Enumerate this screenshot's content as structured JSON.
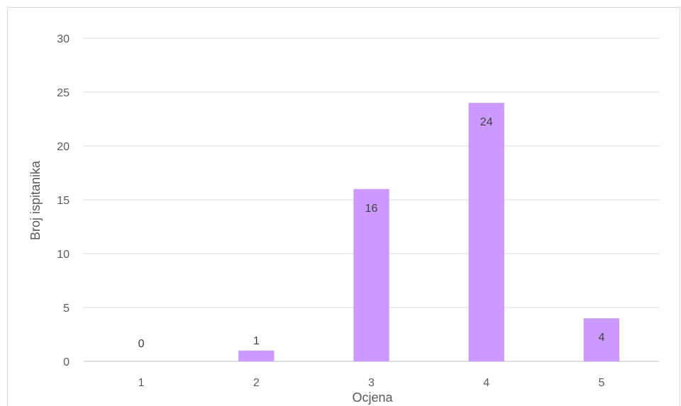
{
  "chart_data": {
    "type": "bar",
    "categories": [
      "1",
      "2",
      "3",
      "4",
      "5"
    ],
    "values": [
      0,
      1,
      16,
      24,
      4
    ],
    "data_labels": [
      "0",
      "1",
      "16",
      "24",
      "4"
    ],
    "xlabel": "Ocjena",
    "ylabel": "Broj ispitanika",
    "ylim": [
      0,
      30
    ],
    "yticks": [
      "0",
      "5",
      "10",
      "15",
      "20",
      "25",
      "30"
    ],
    "grid": true,
    "legend": "none",
    "colors": {
      "bar": "#CC99FF",
      "grid": "#d9d9d9",
      "axis": "#bfbfbf"
    }
  }
}
